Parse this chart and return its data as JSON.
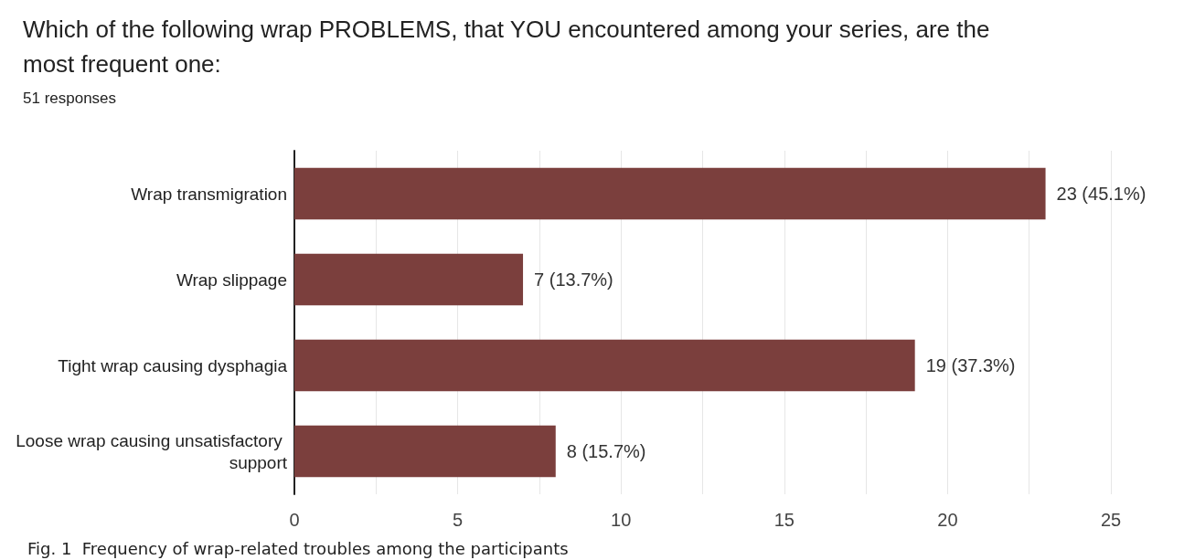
{
  "chart_data": {
    "type": "bar",
    "orientation": "horizontal",
    "title": "Which of the following wrap PROBLEMS, that YOU encountered among your series, are the most frequent one:",
    "subtitle": "51 responses",
    "categories": [
      "Wrap transmigration",
      "Wrap slippage",
      "Tight wrap causing dysphagia",
      "Loose wrap causing unsatisfactory support"
    ],
    "values": [
      23,
      7,
      19,
      8
    ],
    "color": "#7b3f3d",
    "value_labels": [
      "23 (45.1%)",
      "7 (13.7%)",
      "19 (37.3%)",
      "8 (15.7%)"
    ],
    "xlim": [
      0,
      25
    ],
    "xticks": [
      0,
      {
        "value": 2.5,
        "label": null
      },
      5,
      {
        "value": 7.5,
        "label": null
      },
      10,
      {
        "value": 12.5,
        "label": null
      },
      15,
      {
        "value": 17.5,
        "label": null
      },
      20,
      {
        "value": 22.5,
        "label": null
      },
      25
    ],
    "grid": "x",
    "annotations": [
      "Fig. 1  Frequency of wrap-related troubles among the participants"
    ]
  }
}
